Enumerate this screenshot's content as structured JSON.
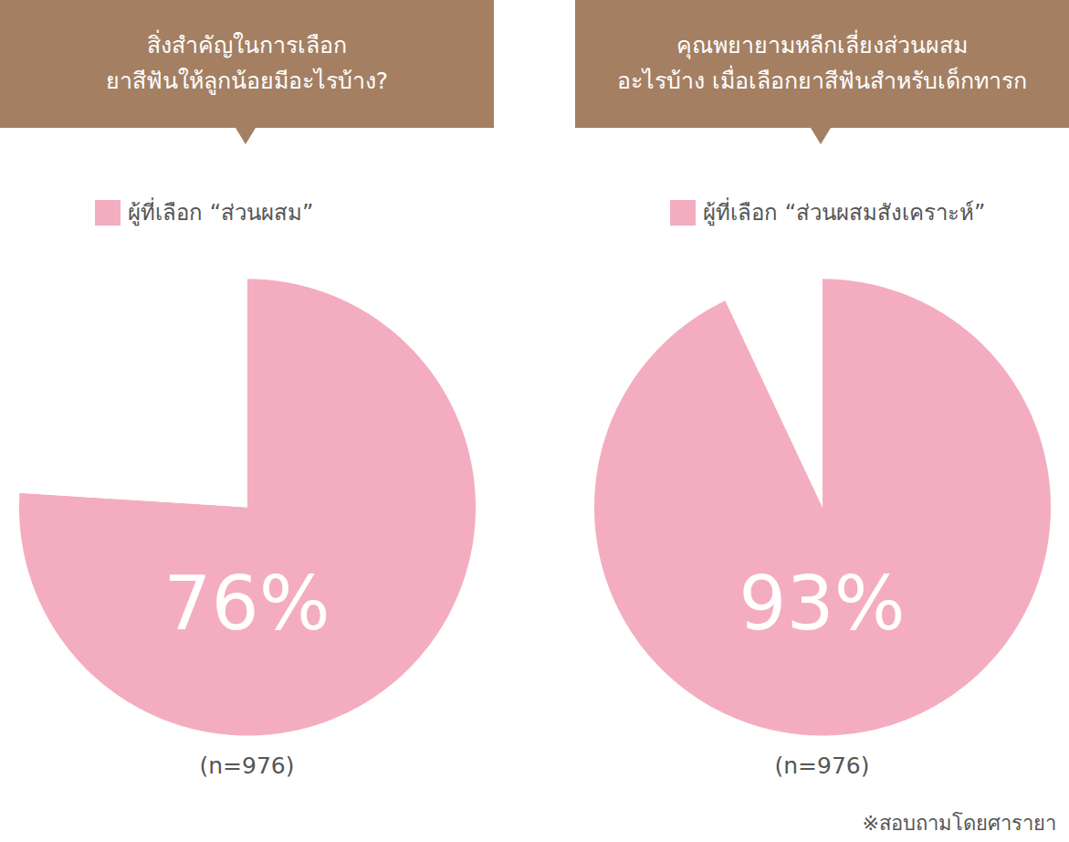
{
  "chart_data": [
    {
      "type": "pie",
      "title": "สิ่งสำคัญในการเลือก\nยาสีฟันให้ลูกน้อยมีอะไรบ้าง?",
      "categories": [
        "ผู้ที่เลือก “ส่วนผสม”",
        null
      ],
      "values": [
        76,
        24
      ],
      "value_labels": [
        "76%",
        null
      ],
      "colors": [
        "#f4adc0",
        "#ffffff"
      ],
      "data_labels": true,
      "legend": "top-left",
      "caption": "(n=976)"
    },
    {
      "type": "pie",
      "title": "คุณพยายามหลีกเลี่ยงส่วนผสม\nอะไรบ้าง เมื่อเลือกยาสีฟันสำหรับเด็กทารก",
      "categories": [
        "ผู้ที่เลือก “ส่วนผสมสังเคราะห์”",
        null
      ],
      "values": [
        93,
        7
      ],
      "value_labels": [
        "93%",
        null
      ],
      "colors": [
        "#f4adc0",
        "#ffffff"
      ],
      "data_labels": true,
      "legend": "top-left",
      "caption": "(n=976)"
    }
  ],
  "footnote": "※สอบถามโดยศารายา"
}
